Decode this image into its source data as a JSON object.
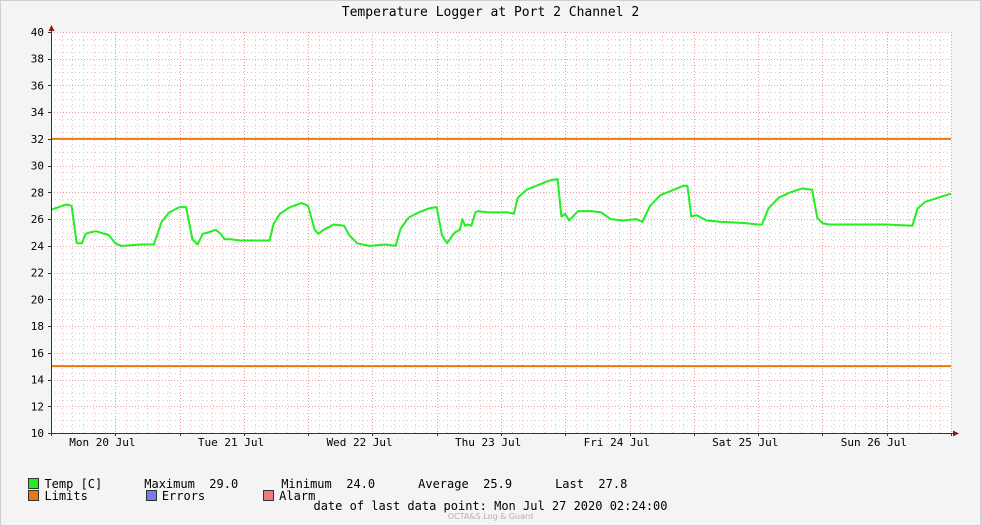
{
  "title": "Temperature Logger at Port 2 Channel 2",
  "colors": {
    "temp": "#22ee22",
    "limits": "#e87810",
    "errors": "#7a7aee",
    "alarm": "#ee7a7a",
    "grid_major": "#e8a0a0",
    "grid_minor": "#e4c8c8"
  },
  "legend": {
    "temp_label": "Temp [C]",
    "limits_label": "Limits",
    "errors_label": "Errors",
    "alarm_label": "Alarm",
    "maximum_label": "Maximum",
    "maximum_value": "29.0",
    "minimum_label": "Minimum",
    "minimum_value": "24.0",
    "average_label": "Average",
    "average_value": "25.9",
    "last_label": "Last",
    "last_value": "27.8"
  },
  "footer": {
    "last_point_label": "date of last data point:",
    "last_point_value": "Mon Jul 27 2020 02:24:00",
    "credit": "OCTA&S Log & Guard"
  },
  "chart_data": {
    "type": "line",
    "ylim": [
      10,
      40
    ],
    "xlim": [
      0,
      7
    ],
    "y_ticks": [
      10,
      12,
      14,
      16,
      18,
      20,
      22,
      24,
      26,
      28,
      30,
      32,
      34,
      36,
      38,
      40
    ],
    "day_labels": [
      "Mon 20 Jul",
      "Tue 21 Jul",
      "Wed 22 Jul",
      "Thu 23 Jul",
      "Fri 24 Jul",
      "Sat 25 Jul",
      "Sun 26 Jul"
    ],
    "limits": [
      15,
      32
    ],
    "series": [
      {
        "name": "Temp [C]",
        "x": [
          0,
          0.12,
          0.16,
          0.2,
          0.24,
          0.27,
          0.3,
          0.35,
          0.45,
          0.5,
          0.52,
          0.55,
          0.7,
          0.8,
          0.86,
          0.92,
          1.0,
          1.05,
          1.1,
          1.14,
          1.18,
          1.22,
          1.28,
          1.32,
          1.35,
          1.4,
          1.47,
          1.6,
          1.7,
          1.73,
          1.78,
          1.86,
          1.95,
          2.0,
          2.05,
          2.08,
          2.12,
          2.2,
          2.28,
          2.32,
          2.38,
          2.42,
          2.48,
          2.6,
          2.68,
          2.72,
          2.78,
          2.86,
          2.94,
          3.0,
          3.04,
          3.08,
          3.14,
          3.18,
          3.2,
          3.22,
          3.24,
          3.27,
          3.3,
          3.32,
          3.4,
          3.55,
          3.6,
          3.63,
          3.7,
          3.8,
          3.88,
          3.94,
          3.97,
          4.0,
          4.03,
          4.1,
          4.2,
          4.28,
          4.35,
          4.45,
          4.55,
          4.6,
          4.66,
          4.74,
          4.82,
          4.92,
          4.95,
          4.98,
          5.02,
          5.1,
          5.2,
          5.4,
          5.5,
          5.53,
          5.58,
          5.66,
          5.75,
          5.84,
          5.92,
          5.96,
          6.0,
          6.05,
          6.2,
          6.5,
          6.7,
          6.74,
          6.8,
          6.9,
          7.0
        ],
        "values": [
          26.7,
          27.1,
          27.0,
          24.2,
          24.2,
          24.9,
          25.0,
          25.1,
          24.8,
          24.2,
          24.1,
          24.0,
          24.1,
          24.1,
          25.8,
          26.5,
          26.9,
          26.9,
          24.5,
          24.1,
          24.9,
          25.0,
          25.2,
          24.9,
          24.5,
          24.5,
          24.4,
          24.4,
          24.4,
          25.6,
          26.4,
          26.9,
          27.2,
          27.0,
          25.2,
          24.9,
          25.2,
          25.6,
          25.5,
          24.8,
          24.2,
          24.1,
          24.0,
          24.1,
          24.0,
          25.3,
          26.1,
          26.5,
          26.8,
          26.9,
          24.8,
          24.2,
          25.0,
          25.2,
          26.0,
          25.5,
          25.6,
          25.5,
          26.5,
          26.6,
          26.5,
          26.5,
          26.4,
          27.6,
          28.2,
          28.6,
          28.9,
          29.0,
          26.2,
          26.4,
          25.9,
          26.6,
          26.6,
          26.5,
          26.0,
          25.9,
          26.0,
          25.8,
          27.0,
          27.8,
          28.1,
          28.5,
          28.5,
          26.2,
          26.3,
          25.9,
          25.8,
          25.7,
          25.6,
          25.6,
          26.8,
          27.6,
          28.0,
          28.3,
          28.2,
          26.1,
          25.7,
          25.6,
          25.6,
          25.6,
          25.5,
          26.8,
          27.3,
          27.6,
          27.9
        ]
      }
    ]
  }
}
